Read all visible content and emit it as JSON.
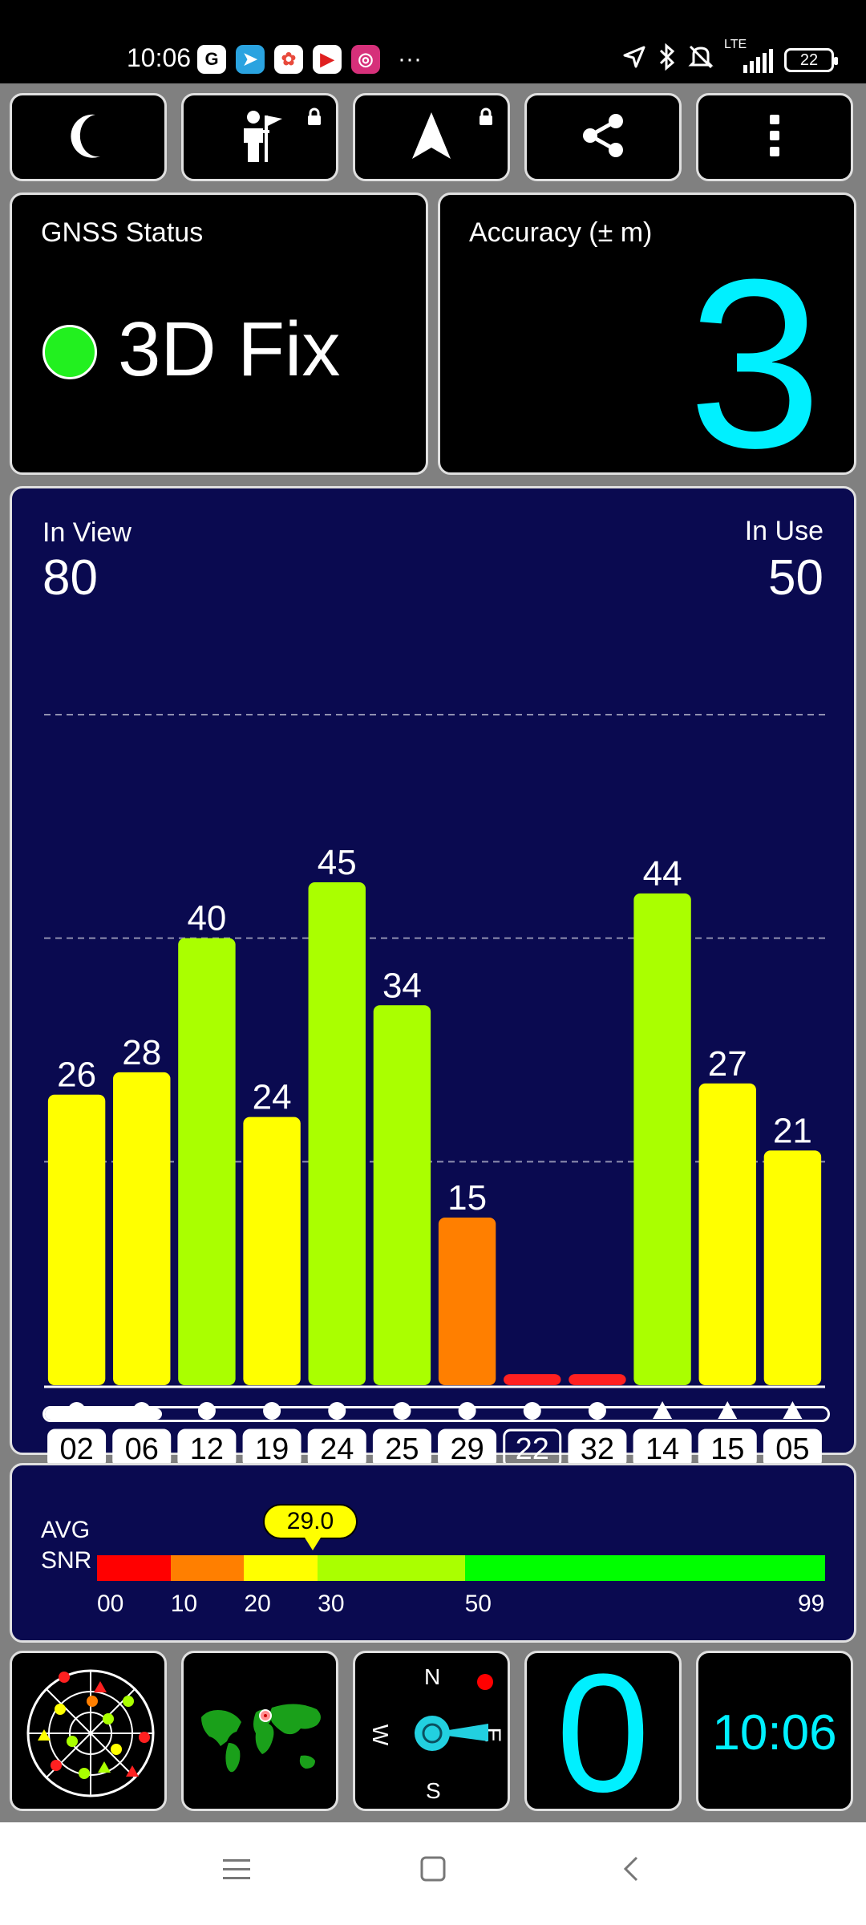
{
  "status_bar": {
    "time": "10:06",
    "app_icons": [
      {
        "name": "google-icon",
        "glyph": "G",
        "color": "#ffffff",
        "text_color": "#000000"
      },
      {
        "name": "telegram-icon",
        "glyph": "➤",
        "color": "#2aa3e0",
        "text_color": "#ffffff"
      },
      {
        "name": "photos-icon",
        "glyph": "✿",
        "color": "#ffffff",
        "text_color": "#e84a3c"
      },
      {
        "name": "youtube-icon",
        "glyph": "▶",
        "color": "#ffffff",
        "text_color": "#e02020"
      },
      {
        "name": "instagram-icon",
        "glyph": "◎",
        "color": "#d6307a",
        "text_color": "#ffffff"
      }
    ],
    "more": "···",
    "network": "LTE",
    "battery": "22"
  },
  "toolbar": {
    "buttons": [
      {
        "name": "night-mode-icon",
        "locked": false
      },
      {
        "name": "status-icon",
        "locked": true
      },
      {
        "name": "navigation-arrow-icon",
        "locked": true
      },
      {
        "name": "share-icon",
        "locked": false
      },
      {
        "name": "more-vert-icon",
        "locked": false
      }
    ]
  },
  "gnss_status": {
    "title": "GNSS Status",
    "value": "3D Fix",
    "indicator_color": "#22f01f"
  },
  "accuracy": {
    "title": "Accuracy (± m)",
    "value": "3"
  },
  "satellites": {
    "in_view_label": "In View",
    "in_view": "80",
    "in_use_label": "In Use",
    "in_use": "50",
    "scroll_fraction": 0.15
  },
  "chart_data": {
    "type": "bar",
    "title": "",
    "xlabel": "",
    "ylabel": "",
    "ylim": [
      0,
      60
    ],
    "grid_lines": [
      20,
      40,
      60
    ],
    "categories": [
      "02",
      "06",
      "12",
      "19",
      "24",
      "25",
      "29",
      "22",
      "32",
      "14",
      "15",
      "05"
    ],
    "values": [
      26,
      28,
      40,
      24,
      45,
      34,
      15,
      1,
      1,
      44,
      27,
      21
    ],
    "value_labels": [
      "26",
      "28",
      "40",
      "24",
      "45",
      "34",
      "15",
      "",
      "",
      "44",
      "27",
      "21"
    ],
    "constellation_markers": [
      "circle",
      "circle",
      "circle",
      "circle",
      "circle",
      "circle",
      "circle",
      "circle",
      "circle",
      "triangle",
      "triangle",
      "triangle"
    ],
    "used_in_fix": [
      true,
      true,
      true,
      true,
      true,
      true,
      true,
      false,
      true,
      true,
      true,
      true
    ],
    "bar_colors": [
      "#ffff00",
      "#ffff00",
      "#aaff00",
      "#ffff00",
      "#aaff00",
      "#aaff00",
      "#ff7f00",
      "#ff2020",
      "#ff2020",
      "#aaff00",
      "#ffff00",
      "#ffff00"
    ]
  },
  "snr": {
    "label_line1": "AVG",
    "label_line2": "SNR",
    "average": "29.0",
    "average_value": 29.0,
    "ticks": [
      "00",
      "10",
      "20",
      "30",
      "50",
      "99"
    ],
    "segments": [
      {
        "from": 0,
        "to": 10,
        "color": "#ff0000"
      },
      {
        "from": 10,
        "to": 20,
        "color": "#ff7f00"
      },
      {
        "from": 20,
        "to": 30,
        "color": "#ffff00"
      },
      {
        "from": 30,
        "to": 50,
        "color": "#aaff00"
      },
      {
        "from": 50,
        "to": 99,
        "color": "#00ff00"
      }
    ]
  },
  "bottom_tiles": {
    "sky_plot": {
      "name": "sky-plot-icon"
    },
    "world_map": {
      "name": "world-map-icon"
    },
    "compass": {
      "north": "N",
      "south": "S",
      "west": "W",
      "east": "E"
    },
    "speed": "0",
    "clock": "10:06"
  }
}
